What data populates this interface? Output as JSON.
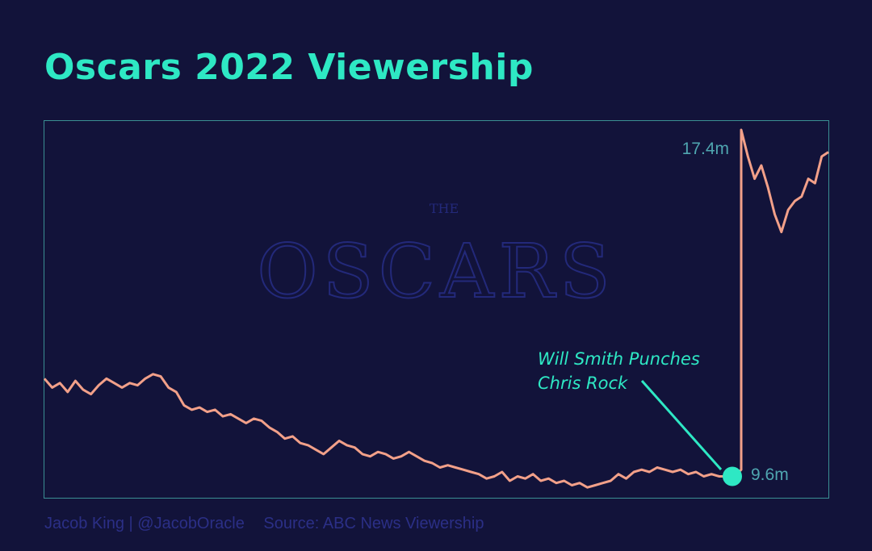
{
  "title": "Oscars 2022 Viewership",
  "credit": {
    "author": "Jacob King | @JacobOracle",
    "source": "Source: ABC News Viewership"
  },
  "watermark": {
    "small": "THE",
    "big": "OSCARS"
  },
  "colors": {
    "background": "#12133a",
    "title": "#2ee8c4",
    "line": "#f2a089",
    "highlight": "#2ee8c4",
    "frame": "#3a8f93",
    "label": "#4fa6b0",
    "credit": "#2b2f86",
    "watermark": "#23297a"
  },
  "chart_data": {
    "type": "line",
    "title": "Oscars 2022 Viewership",
    "xlabel": "",
    "ylabel": "",
    "grid": false,
    "legend": "none",
    "ylim": [
      9.1,
      17.6
    ],
    "series": [
      {
        "values": [
          11.8,
          11.6,
          11.7,
          11.5,
          11.75,
          11.55,
          11.45,
          11.65,
          11.8,
          11.7,
          11.6,
          11.7,
          11.65,
          11.8,
          11.9,
          11.85,
          11.6,
          11.5,
          11.2,
          11.1,
          11.15,
          11.05,
          11.1,
          10.95,
          11.0,
          10.9,
          10.8,
          10.9,
          10.85,
          10.7,
          10.6,
          10.45,
          10.5,
          10.35,
          10.3,
          10.2,
          10.1,
          10.25,
          10.4,
          10.3,
          10.25,
          10.1,
          10.05,
          10.15,
          10.1,
          10.0,
          10.05,
          10.15,
          10.05,
          9.95,
          9.9,
          9.8,
          9.85,
          9.8,
          9.75,
          9.7,
          9.65,
          9.55,
          9.6,
          9.7,
          9.5,
          9.6,
          9.55,
          9.65,
          9.5,
          9.55,
          9.45,
          9.5,
          9.4,
          9.45,
          9.35,
          9.4,
          9.45,
          9.5,
          9.65,
          9.55,
          9.7,
          9.75,
          9.7,
          9.8,
          9.75,
          9.7,
          9.75,
          9.65,
          9.7,
          9.6,
          9.65,
          9.6,
          9.6,
          9.6
        ],
        "peak_values": [
          17.4,
          16.8,
          16.3,
          16.6,
          16.1,
          15.5,
          15.1,
          15.6,
          15.8,
          15.9,
          16.3,
          16.2,
          16.8,
          16.9
        ]
      }
    ],
    "annotations": [
      {
        "label_1": "Will Smith Punches",
        "label_2": "Chris Rock"
      }
    ],
    "value_labels": {
      "high": "17.4m",
      "low": "9.6m"
    }
  }
}
